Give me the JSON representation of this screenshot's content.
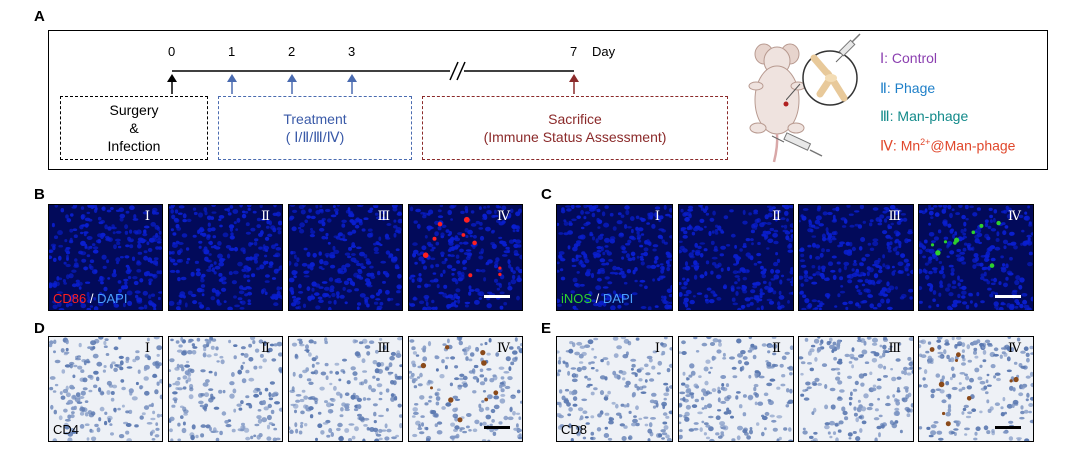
{
  "panel_labels": {
    "a": "A",
    "b": "B",
    "c": "C",
    "d": "D",
    "e": "E"
  },
  "timeline": {
    "ticks": [
      "0",
      "1",
      "2",
      "3",
      "7"
    ],
    "unit": "Day",
    "surgery": {
      "line1": "Surgery",
      "line2": "&",
      "line3": "Infection"
    },
    "treatment": {
      "line1": "Treatment",
      "line2": "( Ⅰ/Ⅱ/Ⅲ/Ⅳ)"
    },
    "sacrifice": {
      "line1": "Sacrifice",
      "line2": "(Immune Status Assessment)"
    }
  },
  "legend": {
    "i": "Ⅰ: Control",
    "ii": "Ⅱ: Phage",
    "iii": "Ⅲ: Man-phage",
    "iv_prefix": "Ⅳ: Mn",
    "iv_sup": "2+",
    "iv_suffix": "@Man-phage"
  },
  "groups": [
    "Ⅰ",
    "Ⅱ",
    "Ⅲ",
    "Ⅳ"
  ],
  "stain_b": {
    "marker": "CD86",
    "sep": " / ",
    "dapi": "DAPI"
  },
  "stain_c": {
    "marker": "iNOS",
    "sep": " / ",
    "dapi": "DAPI"
  },
  "stain_d": {
    "marker": "CD4"
  },
  "stain_e": {
    "marker": "CD8"
  },
  "colors": {
    "control": "#8b3fb0",
    "phage": "#1e7fc8",
    "man_phage": "#128a8a",
    "mn_man_phage": "#e0472b",
    "treatment_box": "#4a6bb0",
    "sacrifice_box": "#8b2a2a",
    "dapi_blue": "#0a1fd0",
    "cd86_red": "#ff2020",
    "inos_green": "#2ed02e",
    "dab_brown": "#8a4a1a"
  },
  "icons": {
    "mouse": "mouse-icon",
    "syringe": "syringe-icon",
    "knee": "knee-joint-icon"
  }
}
